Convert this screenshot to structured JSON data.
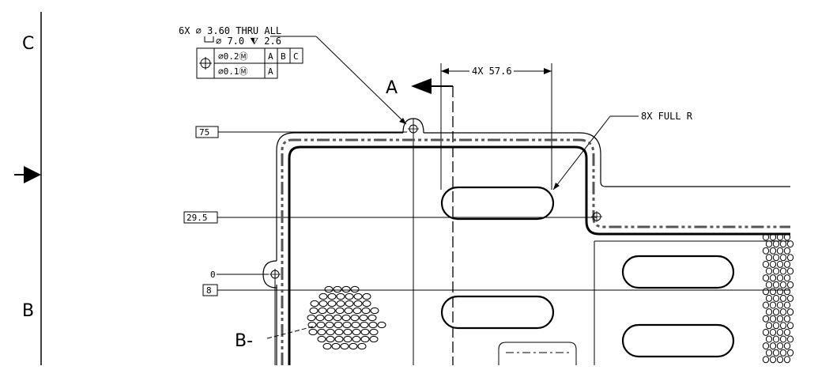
{
  "zones": {
    "upper": "C",
    "lower": "B"
  },
  "hole_callout": {
    "line1": "6X  ⌀  3.60  THRU  ALL",
    "line2": "⌀  7.0  ⧨  2.6",
    "fcf_row1": [
      "⌀0.2Ⓜ",
      "A",
      "B",
      "C"
    ],
    "fcf_row2": [
      "⌀0.1Ⓜ",
      "A"
    ]
  },
  "section_labels": {
    "view_a": "A",
    "view_b": "B-"
  },
  "dimensions": {
    "slot_spacing": "4X  57.6",
    "slot_radius": "8X  FULL  R",
    "ordinate_75": "75",
    "ordinate_29_5": "29.5",
    "ordinate_0": "0",
    "ordinate_8": "8"
  },
  "colors": {
    "line": "#000000",
    "hidden": "#4a4a4a",
    "background": "#ffffff"
  },
  "icons": {
    "position_symbol": "crosshair-in-circle-icon",
    "zone_arrow": "zone-arrow-icon"
  }
}
